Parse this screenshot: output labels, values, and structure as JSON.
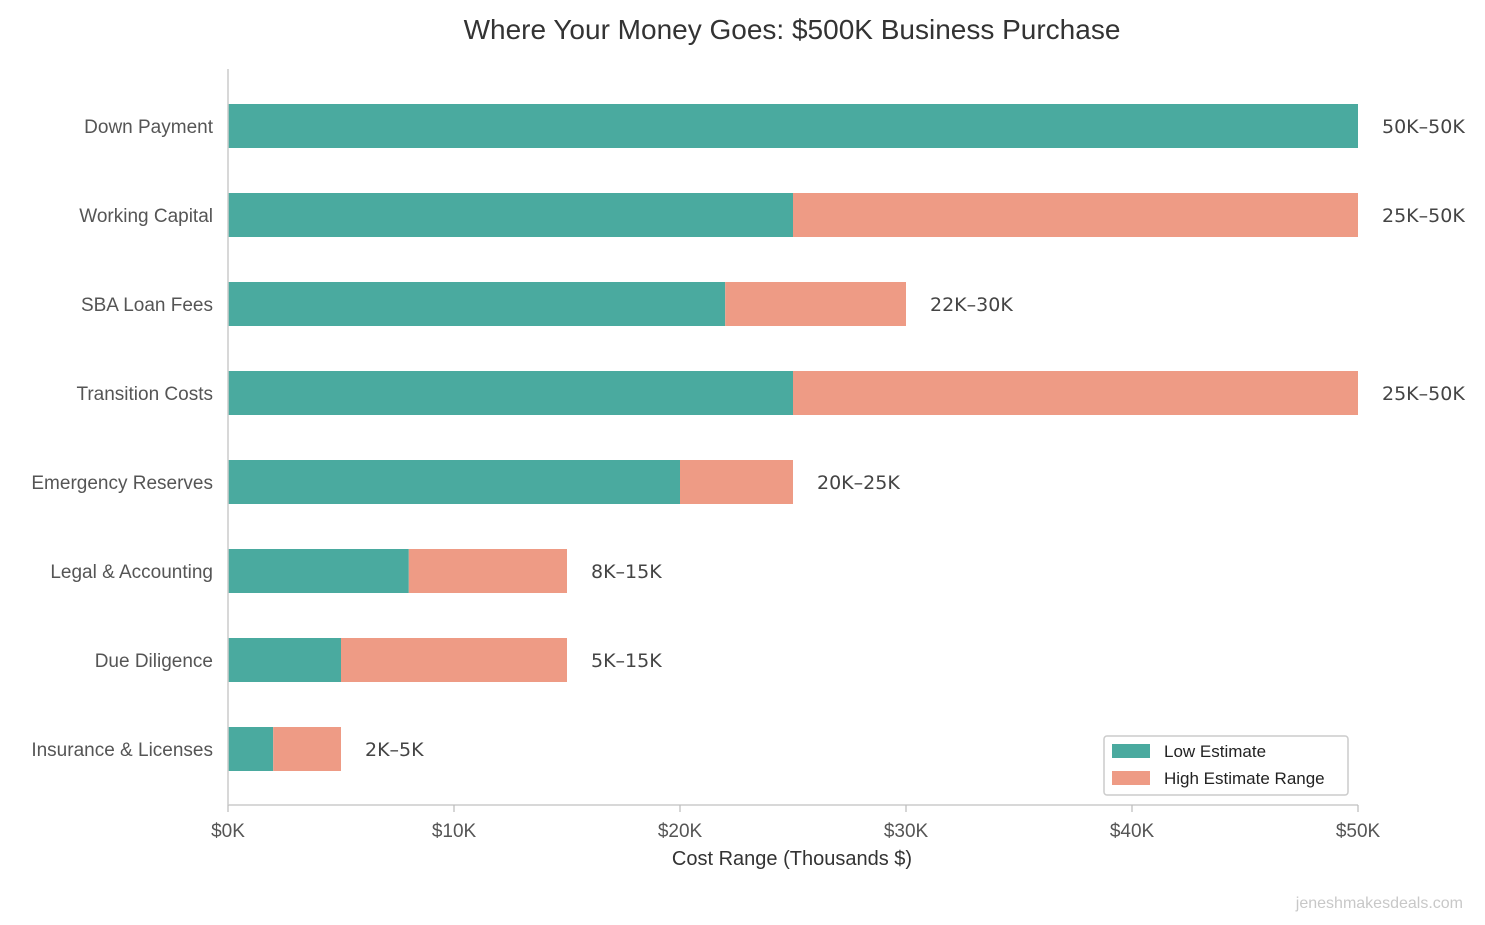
{
  "chart_data": {
    "type": "bar",
    "orientation": "horizontal",
    "stacked": true,
    "title": "Where Your Money Goes: $500K Business Purchase",
    "xlabel": "Cost Range (Thousands $)",
    "ylabel": "",
    "xlim": [
      0,
      50
    ],
    "x_ticks": [
      0,
      10,
      20,
      30,
      40,
      50
    ],
    "x_tick_labels": [
      "$0K",
      "$10K",
      "$20K",
      "$30K",
      "$40K",
      "$50K"
    ],
    "grid": false,
    "legend_position": "bottom-right",
    "categories": [
      "Down Payment",
      "Working Capital",
      "SBA Loan Fees",
      "Transition Costs",
      "Emergency Reserves",
      "Legal & Accounting",
      "Due Diligence",
      "Insurance & Licenses"
    ],
    "series": [
      {
        "name": "Low Estimate",
        "color": "#4aaa9f",
        "values": [
          50,
          25,
          22,
          25,
          20,
          8,
          5,
          2
        ]
      },
      {
        "name": "High Estimate Range",
        "color": "#ee9b85",
        "values": [
          0,
          25,
          8,
          25,
          5,
          7,
          10,
          3
        ]
      }
    ],
    "value_labels": [
      "50K–50K",
      "25K–50K",
      "22K–30K",
      "25K–50K",
      "20K–25K",
      "8K–15K",
      "5K–15K",
      "2K–5K"
    ]
  },
  "watermark": "jeneshmakesdeals.com"
}
